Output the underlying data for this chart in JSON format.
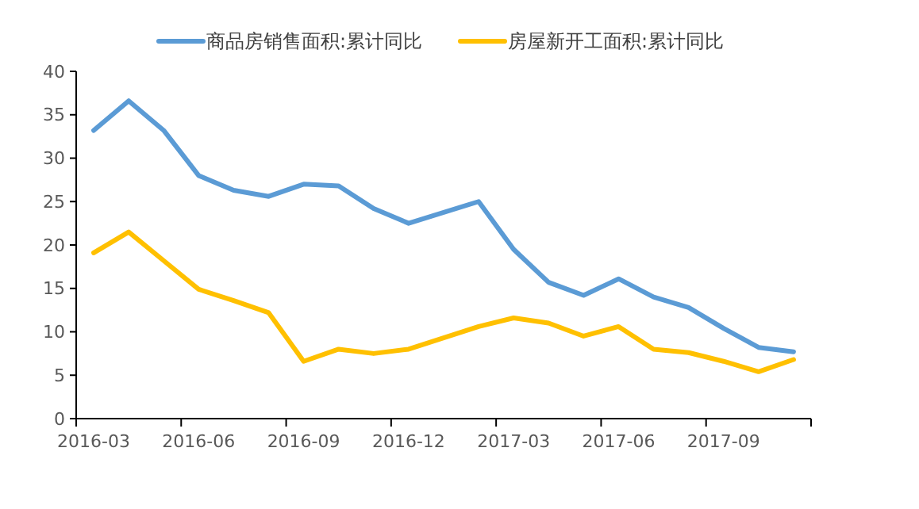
{
  "chart_data": {
    "type": "line",
    "categories": [
      "2016-03",
      null,
      null,
      "2016-06",
      null,
      null,
      "2016-09",
      null,
      null,
      "2016-12",
      null,
      null,
      "2017-03",
      null,
      null,
      "2017-06",
      null,
      null,
      "2017-09",
      null,
      null
    ],
    "series": [
      {
        "name": "商品房销售面积:累计同比",
        "color": "#5b9bd5",
        "values": [
          33.2,
          36.6,
          33.2,
          28.0,
          26.3,
          25.6,
          27.0,
          26.8,
          24.2,
          22.5,
          null,
          25.0,
          19.5,
          15.7,
          14.2,
          16.1,
          14.0,
          12.8,
          10.4,
          8.2,
          7.7
        ]
      },
      {
        "name": "房屋新开工面积:累计同比",
        "color": "#ffc000",
        "values": [
          19.1,
          21.5,
          18.2,
          14.9,
          13.6,
          12.2,
          6.6,
          8.0,
          7.5,
          8.0,
          null,
          10.6,
          11.6,
          11.0,
          9.5,
          10.6,
          8.0,
          7.6,
          6.6,
          5.4,
          6.8
        ]
      }
    ],
    "ylim": [
      0,
      40
    ],
    "yticks": [
      0,
      5,
      10,
      15,
      20,
      25,
      30,
      35,
      40
    ],
    "grid": false,
    "legend": "top",
    "marker": "none",
    "line_style": "solid"
  }
}
